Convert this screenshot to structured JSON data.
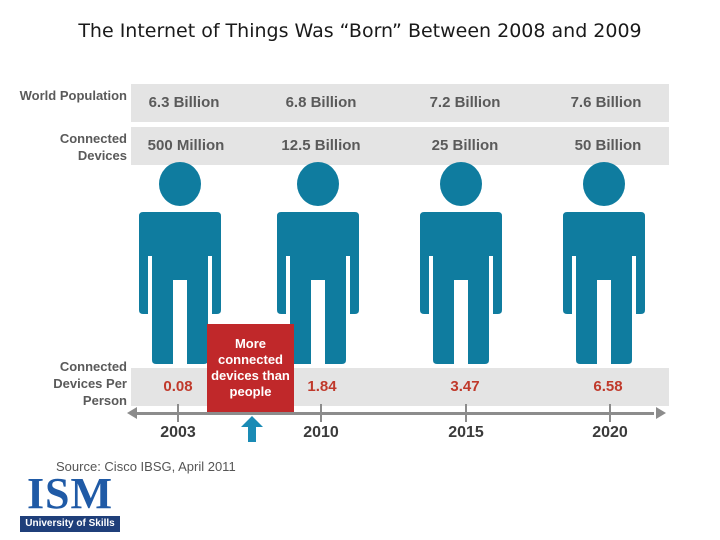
{
  "title": "The Internet of Things Was “Born” Between 2008 and 2009",
  "labels": {
    "world_population": "World Population",
    "connected_devices": "Connected Devices",
    "devices_per_person": "Connected Devices Per Person"
  },
  "world_population": [
    "6.3 Billion",
    "6.8 Billion",
    "7.2 Billion",
    "7.6 Billion"
  ],
  "connected_devices": [
    "500 Million",
    "12.5 Billion",
    "25 Billion",
    "50 Billion"
  ],
  "devices_per_person": [
    "0.08",
    "1.84",
    "3.47",
    "6.58"
  ],
  "years": [
    "2003",
    "2010",
    "2015",
    "2020"
  ],
  "callout": "More connected devices than people",
  "source": "Source: Cisco IBSG, April 2011",
  "logo": {
    "main": "ISM",
    "sub": "University of Skills"
  },
  "colors": {
    "person": "#0f7c9f",
    "callout": "#c0282a",
    "ratio_text": "#c0392b",
    "arrow": "#1a8bb5",
    "band": "#e4e4e4"
  }
}
